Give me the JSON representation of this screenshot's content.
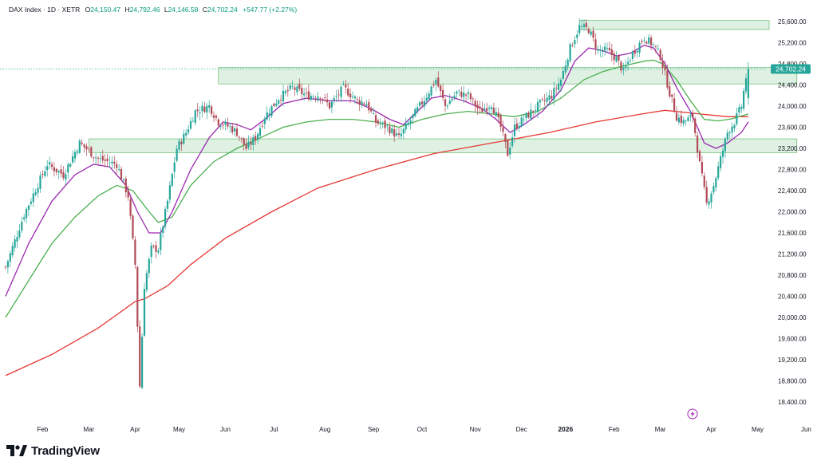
{
  "header": {
    "symbol": "DAX Index · 1D · XETR",
    "open_label": "O",
    "open": "24,150.47",
    "high_label": "H",
    "high": "24,792.46",
    "low_label": "L",
    "low": "24,146.58",
    "close_label": "C",
    "close": "24,702.24",
    "change": "+547.77 (+2.27%)"
  },
  "brand": {
    "name": "TradingView",
    "icon": "tradingview-logo-icon"
  },
  "indicator": {
    "icon": "lightning-icon"
  },
  "colors": {
    "up": "#26a69a",
    "down": "#b04a56",
    "sma200": "#e53935",
    "ema50": "#4caf50",
    "ema20": "#9c27b0",
    "zone": "#b7e1c2"
  },
  "chart_data": {
    "type": "candlestick",
    "last_price_label": "24,702.24",
    "ylim": [
      18200,
      25900
    ],
    "y_ticks": [
      "18,400.00",
      "18,800.00",
      "19,200.00",
      "19,600.00",
      "20,000.00",
      "20,400.00",
      "20,800.00",
      "21,200.00",
      "21,600.00",
      "22,000.00",
      "22,400.00",
      "22,800.00",
      "23,200.00",
      "23,600.00",
      "24,000.00",
      "24,400.00",
      "24,800.00",
      "25,200.00",
      "25,600.00"
    ],
    "y_tick_values": [
      18400,
      18800,
      19200,
      19600,
      20000,
      20400,
      20800,
      21200,
      21600,
      22000,
      22400,
      22800,
      23200,
      23600,
      24000,
      24400,
      24800,
      25200,
      25600
    ],
    "x_ticks": [
      {
        "label": "Feb",
        "i": 16
      },
      {
        "label": "Mar",
        "i": 36
      },
      {
        "label": "Apr",
        "i": 56
      },
      {
        "label": "May",
        "i": 75
      },
      {
        "label": "Jun",
        "i": 95
      },
      {
        "label": "Jul",
        "i": 116
      },
      {
        "label": "Aug",
        "i": 138
      },
      {
        "label": "Sep",
        "i": 159
      },
      {
        "label": "Oct",
        "i": 180
      },
      {
        "label": "Nov",
        "i": 203
      },
      {
        "label": "Dec",
        "i": 223
      },
      {
        "label": "2026",
        "i": 242,
        "bold": true
      },
      {
        "label": "Feb",
        "i": 263
      },
      {
        "label": "Mar",
        "i": 283
      },
      {
        "label": "Apr",
        "i": 305
      },
      {
        "label": "May",
        "i": 325
      },
      {
        "label": "Jun",
        "i": 346
      }
    ],
    "zones": [
      {
        "i0": 248,
        "i1": 330,
        "low": 25450,
        "high": 25620
      },
      {
        "i0": 92,
        "i1": 342,
        "low": 24420,
        "high": 24730
      },
      {
        "i0": 36,
        "i1": 342,
        "low": 23120,
        "high": 23380
      }
    ],
    "candles_note": "Daily OHLC path approximated from the chart",
    "path": [
      [
        0,
        20950
      ],
      [
        8,
        21950
      ],
      [
        18,
        22900
      ],
      [
        25,
        22700
      ],
      [
        32,
        23300
      ],
      [
        40,
        23000
      ],
      [
        48,
        22900
      ],
      [
        53,
        22300
      ],
      [
        56,
        21000
      ],
      [
        58,
        18700
      ],
      [
        60,
        20600
      ],
      [
        63,
        21300
      ],
      [
        66,
        21300
      ],
      [
        70,
        22200
      ],
      [
        74,
        23200
      ],
      [
        78,
        23500
      ],
      [
        82,
        23900
      ],
      [
        88,
        24000
      ],
      [
        92,
        23700
      ],
      [
        97,
        23600
      ],
      [
        100,
        23500
      ],
      [
        104,
        23200
      ],
      [
        108,
        23400
      ],
      [
        112,
        23800
      ],
      [
        118,
        24150
      ],
      [
        124,
        24350
      ],
      [
        130,
        24200
      ],
      [
        136,
        24200
      ],
      [
        140,
        24000
      ],
      [
        146,
        24350
      ],
      [
        152,
        24100
      ],
      [
        156,
        24050
      ],
      [
        160,
        23700
      ],
      [
        165,
        23600
      ],
      [
        170,
        23400
      ],
      [
        176,
        23800
      ],
      [
        182,
        24200
      ],
      [
        186,
        24500
      ],
      [
        190,
        24000
      ],
      [
        195,
        24250
      ],
      [
        200,
        24200
      ],
      [
        205,
        23900
      ],
      [
        210,
        24050
      ],
      [
        214,
        23600
      ],
      [
        217,
        23100
      ],
      [
        220,
        23600
      ],
      [
        225,
        23800
      ],
      [
        230,
        24000
      ],
      [
        236,
        24200
      ],
      [
        240,
        24500
      ],
      [
        244,
        25100
      ],
      [
        248,
        25500
      ],
      [
        252,
        25450
      ],
      [
        256,
        25050
      ],
      [
        260,
        25050
      ],
      [
        264,
        24900
      ],
      [
        267,
        24650
      ],
      [
        271,
        25000
      ],
      [
        276,
        25300
      ],
      [
        280,
        25150
      ],
      [
        283,
        24950
      ],
      [
        287,
        24250
      ],
      [
        290,
        23800
      ],
      [
        293,
        23700
      ],
      [
        297,
        23800
      ],
      [
        300,
        22900
      ],
      [
        303,
        22150
      ],
      [
        306,
        22500
      ],
      [
        309,
        23000
      ],
      [
        312,
        23500
      ],
      [
        315,
        23700
      ],
      [
        318,
        24000
      ],
      [
        320,
        24550
      ],
      [
        321,
        24700
      ]
    ],
    "series": [
      {
        "name": "",
        "kind": "sma200",
        "points": [
          [
            0,
            18900
          ],
          [
            20,
            19300
          ],
          [
            40,
            19800
          ],
          [
            56,
            20300
          ],
          [
            60,
            20350
          ],
          [
            70,
            20600
          ],
          [
            80,
            21000
          ],
          [
            95,
            21500
          ],
          [
            115,
            22000
          ],
          [
            135,
            22450
          ],
          [
            160,
            22800
          ],
          [
            185,
            23100
          ],
          [
            210,
            23300
          ],
          [
            235,
            23500
          ],
          [
            255,
            23700
          ],
          [
            275,
            23850
          ],
          [
            285,
            23920
          ],
          [
            300,
            23850
          ],
          [
            312,
            23800
          ],
          [
            321,
            23800
          ]
        ]
      },
      {
        "name": "",
        "kind": "ema50",
        "points": [
          [
            0,
            20000
          ],
          [
            10,
            20700
          ],
          [
            20,
            21400
          ],
          [
            30,
            21900
          ],
          [
            40,
            22300
          ],
          [
            48,
            22500
          ],
          [
            55,
            22400
          ],
          [
            62,
            22000
          ],
          [
            66,
            21800
          ],
          [
            72,
            21900
          ],
          [
            80,
            22500
          ],
          [
            90,
            22950
          ],
          [
            100,
            23200
          ],
          [
            110,
            23400
          ],
          [
            120,
            23600
          ],
          [
            130,
            23700
          ],
          [
            140,
            23750
          ],
          [
            150,
            23750
          ],
          [
            160,
            23700
          ],
          [
            170,
            23600
          ],
          [
            180,
            23750
          ],
          [
            190,
            23850
          ],
          [
            200,
            23900
          ],
          [
            210,
            23850
          ],
          [
            220,
            23800
          ],
          [
            230,
            23900
          ],
          [
            240,
            24150
          ],
          [
            250,
            24500
          ],
          [
            258,
            24650
          ],
          [
            266,
            24750
          ],
          [
            276,
            24850
          ],
          [
            280,
            24870
          ],
          [
            284,
            24800
          ],
          [
            290,
            24500
          ],
          [
            296,
            24100
          ],
          [
            302,
            23750
          ],
          [
            308,
            23720
          ],
          [
            314,
            23760
          ],
          [
            321,
            23850
          ]
        ]
      },
      {
        "name": "",
        "kind": "ema20",
        "points": [
          [
            0,
            20400
          ],
          [
            10,
            21400
          ],
          [
            20,
            22200
          ],
          [
            30,
            22700
          ],
          [
            38,
            22900
          ],
          [
            45,
            22850
          ],
          [
            52,
            22500
          ],
          [
            57,
            22000
          ],
          [
            62,
            21600
          ],
          [
            67,
            21600
          ],
          [
            72,
            22000
          ],
          [
            80,
            22800
          ],
          [
            88,
            23400
          ],
          [
            94,
            23700
          ],
          [
            100,
            23650
          ],
          [
            106,
            23550
          ],
          [
            112,
            23750
          ],
          [
            120,
            24050
          ],
          [
            130,
            24150
          ],
          [
            140,
            24100
          ],
          [
            150,
            24100
          ],
          [
            158,
            23950
          ],
          [
            166,
            23750
          ],
          [
            172,
            23650
          ],
          [
            178,
            23900
          ],
          [
            184,
            24150
          ],
          [
            190,
            24200
          ],
          [
            198,
            24100
          ],
          [
            206,
            23950
          ],
          [
            212,
            23750
          ],
          [
            218,
            23500
          ],
          [
            224,
            23650
          ],
          [
            232,
            23900
          ],
          [
            240,
            24300
          ],
          [
            246,
            24850
          ],
          [
            252,
            25100
          ],
          [
            258,
            25050
          ],
          [
            264,
            24950
          ],
          [
            270,
            25000
          ],
          [
            276,
            25150
          ],
          [
            280,
            25100
          ],
          [
            285,
            24800
          ],
          [
            290,
            24350
          ],
          [
            296,
            23900
          ],
          [
            302,
            23300
          ],
          [
            307,
            23200
          ],
          [
            312,
            23300
          ],
          [
            318,
            23500
          ],
          [
            321,
            23700
          ]
        ]
      }
    ]
  }
}
